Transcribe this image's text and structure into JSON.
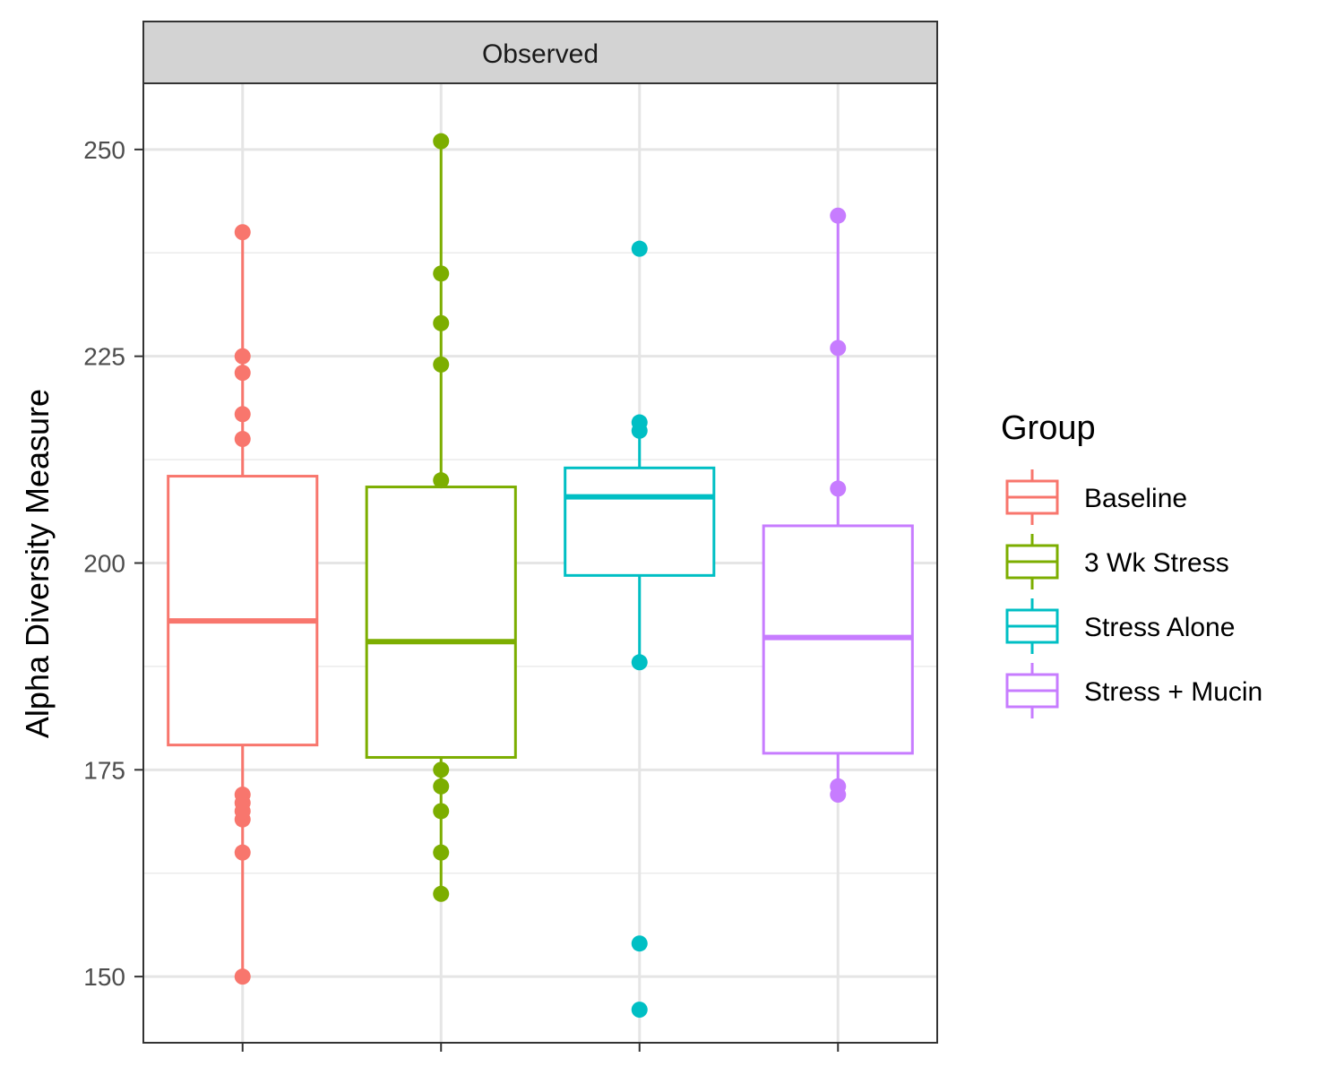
{
  "chart_data": {
    "type": "box",
    "facet_label": "Observed",
    "ylabel": "Alpha Diversity Measure",
    "xlabel": "",
    "ylim": [
      142,
      258
    ],
    "y_ticks": [
      150,
      175,
      200,
      225,
      250
    ],
    "y_minor_ticks": [
      162.5,
      187.5,
      212.5,
      237.5
    ],
    "grid": true,
    "legend": {
      "title": "Group",
      "position": "right"
    },
    "groups": [
      {
        "name": "Baseline",
        "color": "#F8766D",
        "box": {
          "lower_whisker": 150,
          "q1": 178,
          "median": 193,
          "q3": 210.5,
          "upper_whisker": 240
        },
        "points": [
          150,
          165,
          169,
          170,
          171,
          172,
          215,
          218,
          223,
          225,
          240
        ]
      },
      {
        "name": "3 Wk Stress",
        "color": "#7CAE00",
        "box": {
          "lower_whisker": 160,
          "q1": 176.5,
          "median": 190.5,
          "q3": 209.2,
          "upper_whisker": 251
        },
        "points": [
          160,
          165,
          170,
          173,
          175,
          210,
          224,
          229,
          235,
          251
        ]
      },
      {
        "name": "Stress Alone",
        "color": "#00BFC4",
        "box": {
          "lower_whisker": 188,
          "q1": 198.5,
          "median": 208,
          "q3": 211.5,
          "upper_whisker": 216
        },
        "points": [
          146,
          154,
          188,
          216,
          217,
          238
        ]
      },
      {
        "name": "Stress + Mucin",
        "color": "#C77CFF",
        "box": {
          "lower_whisker": 173,
          "q1": 177,
          "median": 191,
          "q3": 204.5,
          "upper_whisker": 242
        },
        "points": [
          172,
          173,
          209,
          226,
          242
        ]
      }
    ]
  }
}
